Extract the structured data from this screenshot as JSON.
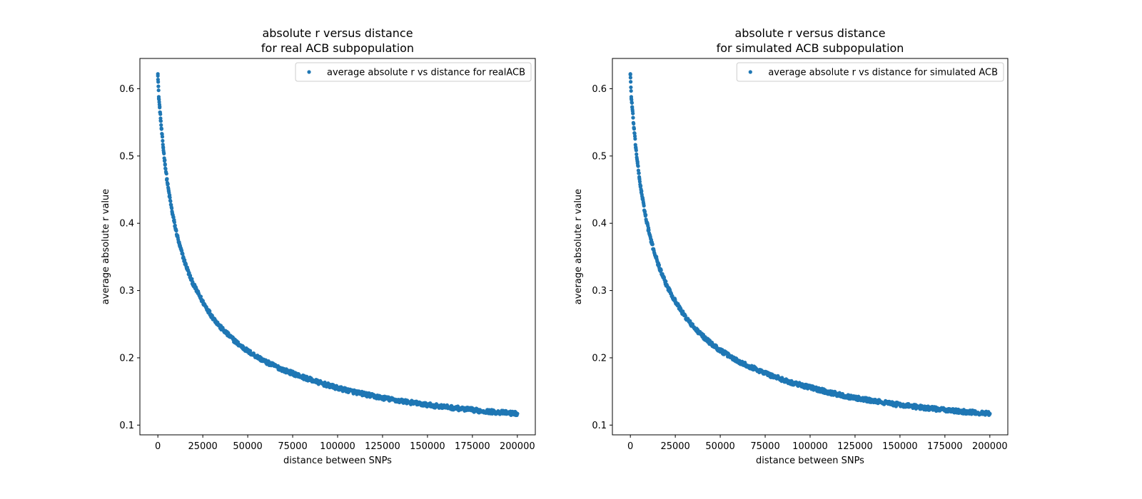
{
  "chart_data": [
    {
      "type": "scatter",
      "title": [
        "absolute r versus distance",
        "for real ACB subpopulation"
      ],
      "xlabel": "distance between SNPs",
      "ylabel": "average absolute r value",
      "xlim": [
        -10000,
        210000
      ],
      "ylim": [
        0.0855,
        0.645
      ],
      "xticks": [
        0,
        25000,
        50000,
        75000,
        100000,
        125000,
        150000,
        175000,
        200000
      ],
      "xtick_labels": [
        "0",
        "25000",
        "50000",
        "75000",
        "100000",
        "125000",
        "150000",
        "175000",
        "200000"
      ],
      "yticks": [
        0.1,
        0.2,
        0.3,
        0.4,
        0.5,
        0.6
      ],
      "ytick_labels": [
        "0.1",
        "0.2",
        "0.3",
        "0.4",
        "0.5",
        "0.6"
      ],
      "legend": "average absolute r vs distance for realACB",
      "legend_loc": "upper right",
      "color": "#1f77b4",
      "x": [
        0,
        500,
        1000,
        1500,
        2000,
        3000,
        4000,
        5000,
        6000,
        8000,
        10000,
        12000,
        15000,
        18000,
        20000,
        25000,
        30000,
        35000,
        40000,
        45000,
        50000,
        60000,
        70000,
        80000,
        90000,
        100000,
        110000,
        120000,
        130000,
        140000,
        150000,
        160000,
        170000,
        180000,
        190000,
        200000
      ],
      "y": [
        0.622,
        0.588,
        0.572,
        0.556,
        0.54,
        0.512,
        0.488,
        0.466,
        0.448,
        0.416,
        0.39,
        0.368,
        0.342,
        0.32,
        0.308,
        0.283,
        0.262,
        0.245,
        0.232,
        0.22,
        0.21,
        0.194,
        0.182,
        0.172,
        0.163,
        0.155,
        0.149,
        0.143,
        0.138,
        0.134,
        0.13,
        0.127,
        0.124,
        0.121,
        0.119,
        0.117
      ]
    },
    {
      "type": "scatter",
      "title": [
        "absolute r versus distance",
        "for simulated ACB subpopulation"
      ],
      "xlabel": "distance between SNPs",
      "ylabel": "average absolute r value",
      "xlim": [
        -10000,
        210000
      ],
      "ylim": [
        0.0855,
        0.645
      ],
      "xticks": [
        0,
        25000,
        50000,
        75000,
        100000,
        125000,
        150000,
        175000,
        200000
      ],
      "xtick_labels": [
        "0",
        "25000",
        "50000",
        "75000",
        "100000",
        "125000",
        "150000",
        "175000",
        "200000"
      ],
      "yticks": [
        0.1,
        0.2,
        0.3,
        0.4,
        0.5,
        0.6
      ],
      "ytick_labels": [
        "0.1",
        "0.2",
        "0.3",
        "0.4",
        "0.5",
        "0.6"
      ],
      "legend": "average absolute r vs distance for simulated ACB",
      "legend_loc": "upper right",
      "color": "#1f77b4",
      "x": [
        0,
        500,
        1000,
        1500,
        2000,
        3000,
        4000,
        5000,
        6000,
        8000,
        10000,
        12000,
        15000,
        18000,
        20000,
        25000,
        30000,
        35000,
        40000,
        45000,
        50000,
        60000,
        70000,
        80000,
        90000,
        100000,
        110000,
        120000,
        130000,
        140000,
        150000,
        160000,
        170000,
        180000,
        190000,
        200000
      ],
      "y": [
        0.622,
        0.588,
        0.573,
        0.557,
        0.541,
        0.513,
        0.489,
        0.467,
        0.449,
        0.417,
        0.391,
        0.369,
        0.343,
        0.321,
        0.309,
        0.284,
        0.263,
        0.246,
        0.233,
        0.221,
        0.211,
        0.195,
        0.183,
        0.172,
        0.163,
        0.156,
        0.149,
        0.143,
        0.138,
        0.134,
        0.13,
        0.127,
        0.124,
        0.121,
        0.119,
        0.117
      ]
    }
  ]
}
